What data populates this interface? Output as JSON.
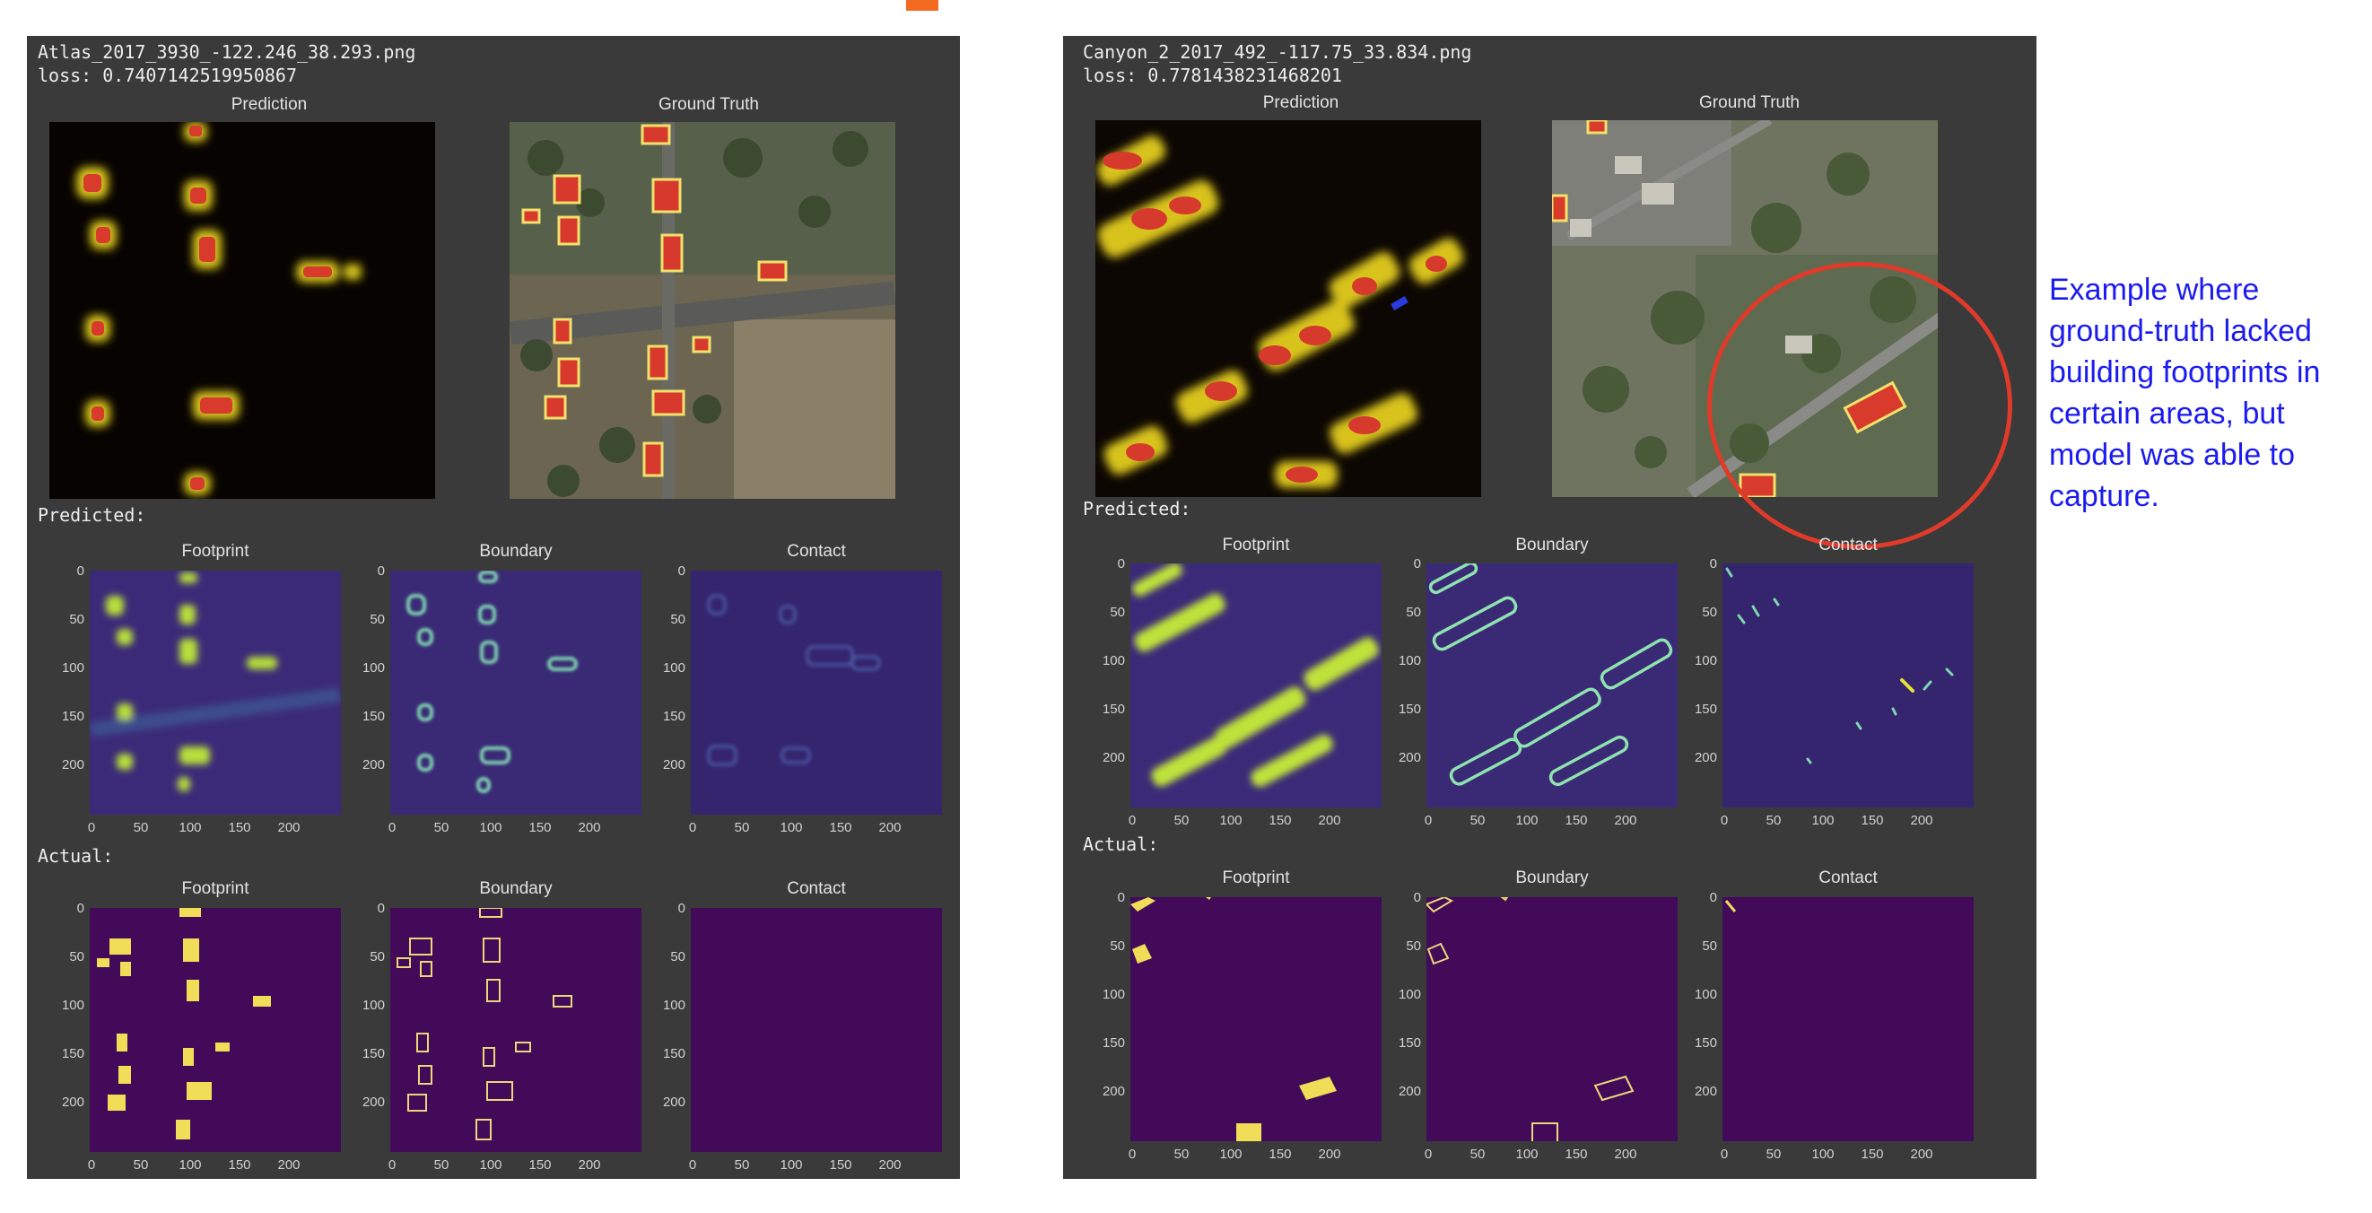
{
  "panels": [
    {
      "filename": "Atlas_2017_3930_-122.246_38.293.png",
      "loss": "loss: 0.7407142519950867",
      "titles": {
        "prediction": "Prediction",
        "ground_truth": "Ground Truth"
      },
      "predicted_label": "Predicted:",
      "actual_label": "Actual:",
      "subtitles": [
        "Footprint",
        "Boundary",
        "Contact"
      ]
    },
    {
      "filename": "Canyon_2_2017_492_-117.75_33.834.png",
      "loss": "loss: 0.7781438231468201",
      "titles": {
        "prediction": "Prediction",
        "ground_truth": "Ground Truth"
      },
      "predicted_label": "Predicted:",
      "actual_label": "Actual:",
      "subtitles": [
        "Footprint",
        "Boundary",
        "Contact"
      ]
    }
  ],
  "axis": {
    "yticks": [
      "0",
      "50",
      "100",
      "150",
      "200"
    ],
    "xticks": [
      "0",
      "50",
      "100",
      "150",
      "200"
    ]
  },
  "note": "Example where ground-truth lacked building footprints in certain areas, but model was able to capture.",
  "colors": {
    "accent": "#f26b21",
    "annotation": "#1b1bf0",
    "circle": "#e03a2a"
  }
}
